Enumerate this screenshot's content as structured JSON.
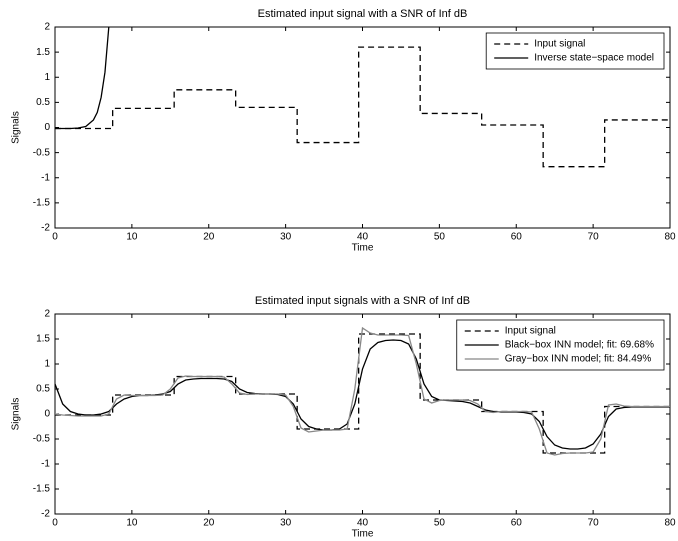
{
  "chart_data": [
    {
      "type": "line",
      "title": "Estimated input signal with a SNR of Inf dB",
      "xlabel": "Time",
      "ylabel": "Signals",
      "xlim": [
        0,
        80
      ],
      "ylim": [
        -2,
        2
      ],
      "xticks": [
        0,
        10,
        20,
        30,
        40,
        50,
        60,
        70,
        80
      ],
      "yticks": [
        -2,
        -1.5,
        -1,
        -0.5,
        0,
        0.5,
        1,
        1.5,
        2
      ],
      "legend": "upper right",
      "series": [
        {
          "name": "Input signal",
          "color": "#000000",
          "line_style": "dashed",
          "x": [
            0,
            7.5,
            7.5,
            15.5,
            15.5,
            23.5,
            23.5,
            31.5,
            31.5,
            39.5,
            39.5,
            47.5,
            47.5,
            55.5,
            55.5,
            63.5,
            63.5,
            71.5,
            71.5,
            80
          ],
          "values": [
            -0.02,
            -0.02,
            0.38,
            0.38,
            0.75,
            0.75,
            0.4,
            0.4,
            -0.3,
            -0.3,
            1.6,
            1.6,
            0.28,
            0.28,
            0.05,
            0.05,
            -0.78,
            -0.78,
            0.15,
            0.15
          ]
        },
        {
          "name": "Inverse state−space model",
          "color": "#000000",
          "line_style": "solid",
          "x": [
            0,
            1,
            2,
            3,
            4,
            5,
            5.5,
            6,
            6.5,
            7
          ],
          "values": [
            -0.02,
            -0.02,
            -0.02,
            -0.01,
            0.02,
            0.15,
            0.3,
            0.6,
            1.1,
            2
          ]
        }
      ]
    },
    {
      "type": "line",
      "title": "Estimated input signals with a SNR of Inf dB",
      "xlabel": "Time",
      "ylabel": "Signals",
      "xlim": [
        0,
        80
      ],
      "ylim": [
        -2,
        2
      ],
      "xticks": [
        0,
        10,
        20,
        30,
        40,
        50,
        60,
        70,
        80
      ],
      "yticks": [
        -2,
        -1.5,
        -1,
        -0.5,
        0,
        0.5,
        1,
        1.5,
        2
      ],
      "legend": "upper right",
      "series": [
        {
          "name": "Input signal",
          "color": "#000000",
          "line_style": "dashed",
          "x": [
            0,
            7.5,
            7.5,
            15.5,
            15.5,
            23.5,
            23.5,
            31.5,
            31.5,
            39.5,
            39.5,
            47.5,
            47.5,
            55.5,
            55.5,
            63.5,
            63.5,
            71.5,
            71.5,
            80
          ],
          "values": [
            -0.02,
            -0.02,
            0.38,
            0.38,
            0.75,
            0.75,
            0.4,
            0.4,
            -0.3,
            -0.3,
            1.6,
            1.6,
            0.28,
            0.28,
            0.05,
            0.05,
            -0.78,
            -0.78,
            0.15,
            0.15
          ]
        },
        {
          "name": "Black−box INN model; fit: 69.68%",
          "color": "#000000",
          "line_style": "solid",
          "x": [
            0,
            1,
            2,
            3,
            4,
            5,
            6,
            7,
            8,
            9,
            10,
            11,
            12,
            13,
            14,
            15,
            16,
            17,
            18,
            19,
            20,
            21,
            22,
            23,
            24,
            25,
            26,
            27,
            28,
            29,
            30,
            31,
            32,
            33,
            34,
            35,
            36,
            37,
            38,
            39,
            40,
            41,
            42,
            43,
            44,
            45,
            46,
            47,
            48,
            49,
            50,
            51,
            52,
            53,
            54,
            55,
            56,
            57,
            58,
            59,
            60,
            61,
            62,
            63,
            64,
            65,
            66,
            67,
            68,
            69,
            70,
            71,
            72,
            73,
            74,
            75,
            76,
            77,
            78,
            79,
            80
          ],
          "values": [
            0.6,
            0.2,
            0.05,
            0.0,
            -0.02,
            -0.02,
            0.0,
            0.05,
            0.2,
            0.3,
            0.35,
            0.37,
            0.37,
            0.38,
            0.4,
            0.45,
            0.6,
            0.68,
            0.7,
            0.71,
            0.71,
            0.71,
            0.7,
            0.65,
            0.5,
            0.43,
            0.41,
            0.4,
            0.4,
            0.39,
            0.35,
            0.2,
            -0.1,
            -0.25,
            -0.3,
            -0.32,
            -0.32,
            -0.3,
            -0.2,
            0.2,
            0.9,
            1.3,
            1.43,
            1.47,
            1.48,
            1.47,
            1.4,
            1.1,
            0.6,
            0.35,
            0.28,
            0.27,
            0.26,
            0.25,
            0.22,
            0.15,
            0.08,
            0.05,
            0.04,
            0.04,
            0.04,
            0.03,
            0.0,
            -0.15,
            -0.45,
            -0.62,
            -0.68,
            -0.7,
            -0.7,
            -0.68,
            -0.6,
            -0.4,
            -0.05,
            0.1,
            0.13,
            0.14,
            0.14,
            0.14,
            0.14,
            0.14,
            0.14
          ]
        },
        {
          "name": "Gray−box INN model; fit: 84.49%",
          "color": "#888888",
          "line_style": "solid",
          "x": [
            0,
            1,
            2,
            3,
            4,
            5,
            6,
            7,
            8,
            9,
            10,
            11,
            12,
            13,
            14,
            15,
            16,
            17,
            18,
            19,
            20,
            21,
            22,
            23,
            24,
            25,
            26,
            27,
            28,
            29,
            30,
            31,
            32,
            33,
            34,
            35,
            36,
            37,
            38,
            39,
            40,
            41,
            42,
            43,
            44,
            45,
            46,
            47,
            48,
            49,
            50,
            51,
            52,
            53,
            54,
            55,
            56,
            57,
            58,
            59,
            60,
            61,
            62,
            63,
            64,
            65,
            66,
            67,
            68,
            69,
            70,
            71,
            72,
            73,
            74,
            75,
            76,
            77,
            78,
            79,
            80
          ],
          "values": [
            0.0,
            -0.02,
            -0.03,
            -0.04,
            -0.04,
            -0.04,
            -0.04,
            0.0,
            0.3,
            0.38,
            0.37,
            0.37,
            0.37,
            0.37,
            0.38,
            0.5,
            0.72,
            0.76,
            0.75,
            0.75,
            0.75,
            0.75,
            0.74,
            0.6,
            0.42,
            0.39,
            0.4,
            0.4,
            0.4,
            0.4,
            0.38,
            0.15,
            -0.28,
            -0.36,
            -0.34,
            -0.32,
            -0.32,
            -0.32,
            -0.3,
            0.5,
            1.72,
            1.62,
            1.58,
            1.58,
            1.58,
            1.58,
            1.57,
            1.0,
            0.3,
            0.22,
            0.27,
            0.28,
            0.28,
            0.28,
            0.27,
            0.2,
            0.05,
            0.03,
            0.05,
            0.05,
            0.05,
            0.05,
            0.04,
            -0.3,
            -0.78,
            -0.82,
            -0.79,
            -0.78,
            -0.78,
            -0.78,
            -0.76,
            -0.5,
            0.18,
            0.2,
            0.16,
            0.15,
            0.15,
            0.15,
            0.15,
            0.15,
            0.15
          ]
        }
      ]
    }
  ]
}
